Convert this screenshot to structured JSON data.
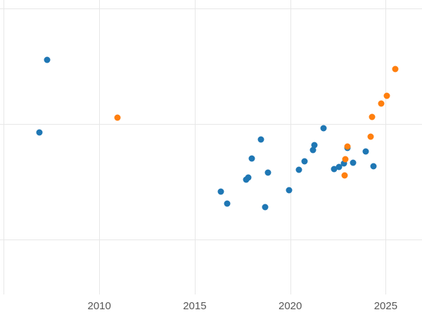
{
  "chart_data": {
    "type": "scatter",
    "title": "",
    "xlabel": "",
    "ylabel": "",
    "legend": "none",
    "grid": true,
    "xlim": [
      2004.8,
      2026.9
    ],
    "ylim": [
      -33.5,
      103.7
    ],
    "x_gridlines": [
      2005,
      2010,
      2015,
      2020,
      2025
    ],
    "y_gridlines": [
      0,
      50,
      100
    ],
    "x_ticks": [
      {
        "value": 2010,
        "label": "2010"
      },
      {
        "value": 2015,
        "label": "2015"
      },
      {
        "value": 2020,
        "label": "2020"
      },
      {
        "value": 2025,
        "label": "2025"
      }
    ],
    "y_tick_labels_visible": false,
    "marker_diameter_px": 9,
    "colors": {
      "background": "#ffffff",
      "grid": "#e7e7e7",
      "tick_label": "#575757",
      "series_blue": "#1f77b4",
      "series_orange": "#ff7f0e"
    },
    "series": [
      {
        "name": "blue",
        "color": "#1f77b4",
        "points": [
          [
            2006.85,
            46.3
          ],
          [
            2007.25,
            77.7
          ],
          [
            2016.35,
            20.7
          ],
          [
            2016.7,
            15.6
          ],
          [
            2017.7,
            25.9
          ],
          [
            2017.8,
            26.8
          ],
          [
            2018.0,
            35.1
          ],
          [
            2018.45,
            43.3
          ],
          [
            2018.7,
            14.0
          ],
          [
            2018.85,
            29.0
          ],
          [
            2019.95,
            21.3
          ],
          [
            2020.45,
            30.2
          ],
          [
            2020.75,
            33.8
          ],
          [
            2021.2,
            38.7
          ],
          [
            2021.25,
            41.0
          ],
          [
            2021.75,
            48.2
          ],
          [
            2022.3,
            30.5
          ],
          [
            2022.55,
            31.4
          ],
          [
            2022.8,
            33.0
          ],
          [
            2023.0,
            39.6
          ],
          [
            2023.3,
            33.2
          ],
          [
            2023.95,
            38.1
          ],
          [
            2024.35,
            31.7
          ]
        ]
      },
      {
        "name": "orange",
        "color": "#ff7f0e",
        "points": [
          [
            2010.95,
            52.7
          ],
          [
            2022.85,
            27.7
          ],
          [
            2022.9,
            34.8
          ],
          [
            2023.0,
            40.2
          ],
          [
            2024.2,
            44.5
          ],
          [
            2024.3,
            53.0
          ],
          [
            2024.75,
            58.8
          ],
          [
            2025.05,
            62.2
          ],
          [
            2025.5,
            73.8
          ]
        ]
      }
    ]
  }
}
